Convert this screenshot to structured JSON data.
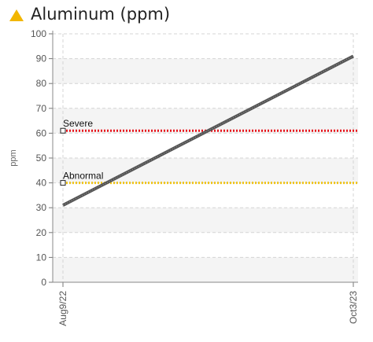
{
  "header": {
    "title": "Aluminum (ppm)",
    "icon": "warning-triangle-icon",
    "icon_color": "#f2b600"
  },
  "chart_data": {
    "type": "line",
    "title": "Aluminum (ppm)",
    "xlabel": "",
    "ylabel": "ppm",
    "categories": [
      "Aug9/22",
      "Oct3/23"
    ],
    "ylim": [
      0,
      100
    ],
    "yticks": [
      "0",
      "10",
      "20",
      "30",
      "40",
      "50",
      "60",
      "70",
      "80",
      "90",
      "100"
    ],
    "grid": true,
    "series": [
      {
        "values": [
          31,
          91
        ],
        "color": "#555555"
      }
    ],
    "thresholds": [
      {
        "name": "Severe",
        "value": 61,
        "color": "#e8141c"
      },
      {
        "name": "Abnormal",
        "value": 40,
        "color": "#f0c419"
      }
    ]
  }
}
